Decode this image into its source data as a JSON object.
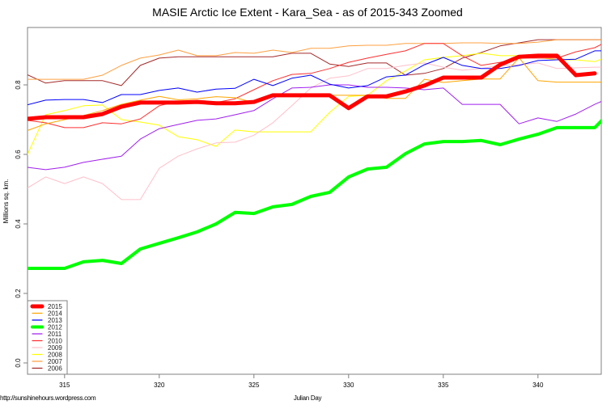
{
  "chart_data": {
    "type": "line",
    "title": "MASIE Arctic Ice Extent - Kara_Sea - as of 2015-343 Zoomed",
    "xlabel": "Julian Day",
    "ylabel": "Millions sq. km.",
    "xlim": [
      313,
      343.5
    ],
    "ylim": [
      0.0,
      0.95
    ],
    "x_ticks": [
      315,
      320,
      325,
      330,
      335,
      340
    ],
    "y_ticks": [
      0.0,
      0.2,
      0.4,
      0.6,
      0.8
    ],
    "y_tick_labels": [
      "0.0",
      "0.2",
      "0.4",
      "0.6",
      "0.8"
    ],
    "grid": false,
    "legend_position": "bottom-left",
    "x": [
      313,
      314,
      315,
      316,
      317,
      318,
      319,
      320,
      321,
      322,
      323,
      324,
      325,
      326,
      327,
      328,
      329,
      330,
      331,
      332,
      333,
      334,
      335,
      336,
      337,
      338,
      339,
      340,
      341,
      342,
      343,
      343.5
    ],
    "series": [
      {
        "name": "2015",
        "color": "#ff0000",
        "width": 5,
        "values": [
          0.702,
          0.707,
          0.707,
          0.707,
          0.716,
          0.737,
          0.749,
          0.749,
          0.749,
          0.751,
          0.747,
          0.747,
          0.751,
          0.77,
          0.77,
          0.77,
          0.77,
          0.733,
          0.767,
          0.767,
          0.781,
          0.798,
          0.821,
          0.821,
          0.821,
          0.858,
          0.881,
          0.884,
          0.884,
          0.828,
          0.833
        ]
      },
      {
        "name": "2014",
        "color": "#ffa500",
        "width": 1,
        "values": [
          0.668,
          0.688,
          0.7,
          0.712,
          0.726,
          0.744,
          0.756,
          0.767,
          0.757,
          0.76,
          0.766,
          0.763,
          0.749,
          0.77,
          0.77,
          0.77,
          0.77,
          0.77,
          0.77,
          0.761,
          0.761,
          0.816,
          0.807,
          0.812,
          0.817,
          0.817,
          0.878,
          0.812,
          0.808,
          0.808,
          0.808,
          0.808
        ]
      },
      {
        "name": "2013",
        "color": "#0000ff",
        "width": 1,
        "values": [
          0.742,
          0.756,
          0.758,
          0.758,
          0.749,
          0.772,
          0.772,
          0.784,
          0.791,
          0.779,
          0.788,
          0.79,
          0.816,
          0.798,
          0.819,
          0.828,
          0.802,
          0.791,
          0.798,
          0.823,
          0.828,
          0.858,
          0.879,
          0.856,
          0.847,
          0.847,
          0.856,
          0.87,
          0.872,
          0.874,
          0.898,
          0.898
        ]
      },
      {
        "name": "2012",
        "color": "#00ff00",
        "width": 4,
        "values": [
          0.272,
          0.272,
          0.272,
          0.291,
          0.295,
          0.286,
          0.328,
          0.344,
          0.36,
          0.377,
          0.4,
          0.433,
          0.43,
          0.449,
          0.456,
          0.479,
          0.491,
          0.535,
          0.558,
          0.563,
          0.602,
          0.63,
          0.637,
          0.637,
          0.64,
          0.628,
          0.644,
          0.658,
          0.677,
          0.677,
          0.677,
          0.705
        ]
      },
      {
        "name": "2011",
        "color": "#a020f0",
        "width": 1,
        "values": [
          0.563,
          0.556,
          0.563,
          0.577,
          0.586,
          0.595,
          0.644,
          0.674,
          0.686,
          0.698,
          0.702,
          0.714,
          0.726,
          0.76,
          0.791,
          0.793,
          0.8,
          0.8,
          0.793,
          0.793,
          0.791,
          0.786,
          0.791,
          0.744,
          0.744,
          0.744,
          0.688,
          0.705,
          0.695,
          0.716,
          0.744,
          0.756
        ]
      },
      {
        "name": "2010",
        "color": "#ff3030",
        "width": 1,
        "values": [
          0.698,
          0.691,
          0.677,
          0.677,
          0.691,
          0.688,
          0.702,
          0.74,
          0.753,
          0.749,
          0.749,
          0.76,
          0.786,
          0.812,
          0.83,
          0.833,
          0.847,
          0.865,
          0.877,
          0.888,
          0.898,
          0.919,
          0.919,
          0.884,
          0.856,
          0.865,
          0.877,
          0.877,
          0.877,
          0.895,
          0.907,
          0.921
        ]
      },
      {
        "name": "2009",
        "color": "#ffc0cb",
        "width": 1,
        "values": [
          0.502,
          0.535,
          0.516,
          0.535,
          0.516,
          0.47,
          0.47,
          0.56,
          0.595,
          0.616,
          0.633,
          0.635,
          0.655,
          0.691,
          0.74,
          0.791,
          0.819,
          0.826,
          0.847,
          0.847,
          0.856,
          0.863,
          0.851,
          0.842,
          0.847,
          0.856,
          0.858,
          0.863,
          0.847,
          0.849,
          0.851,
          0.851
        ]
      },
      {
        "name": "2008",
        "color": "#ffff00",
        "width": 1,
        "values": [
          0.595,
          0.714,
          0.726,
          0.74,
          0.742,
          0.7,
          0.693,
          0.684,
          0.651,
          0.642,
          0.623,
          0.67,
          0.665,
          0.665,
          0.665,
          0.665,
          0.721,
          0.767,
          0.77,
          0.812,
          0.84,
          0.872,
          0.879,
          0.884,
          0.891,
          0.884,
          0.884,
          0.879,
          0.872,
          0.872,
          0.867,
          0.877
        ]
      },
      {
        "name": "2007",
        "color": "#ffa040",
        "width": 1,
        "values": [
          0.816,
          0.816,
          0.816,
          0.816,
          0.828,
          0.856,
          0.877,
          0.886,
          0.9,
          0.884,
          0.884,
          0.893,
          0.891,
          0.9,
          0.893,
          0.905,
          0.905,
          0.912,
          0.914,
          0.914,
          0.919,
          0.919,
          0.919,
          0.921,
          0.921,
          0.919,
          0.919,
          0.923,
          0.93,
          0.93,
          0.93,
          0.93
        ]
      },
      {
        "name": "2006",
        "color": "#a52a2a",
        "width": 1,
        "values": [
          0.83,
          0.805,
          0.812,
          0.812,
          0.812,
          0.798,
          0.856,
          0.877,
          0.881,
          0.881,
          0.881,
          0.881,
          0.881,
          0.881,
          0.891,
          0.891,
          0.86,
          0.853,
          0.863,
          0.863,
          0.828,
          0.833,
          0.847,
          0.877,
          0.893,
          0.912,
          0.921,
          0.93,
          0.93,
          0.93,
          0.93,
          0.93
        ]
      }
    ]
  },
  "title": "MASIE Arctic Ice Extent - Kara_Sea - as of 2015-343 Zoomed",
  "xlabel": "Julian Day",
  "ylabel": "Millions sq. km.",
  "source": "http://sunshinehours.wordpress.com",
  "legend": [
    "2015",
    "2014",
    "2013",
    "2012",
    "2011",
    "2010",
    "2009",
    "2008",
    "2007",
    "2006"
  ]
}
